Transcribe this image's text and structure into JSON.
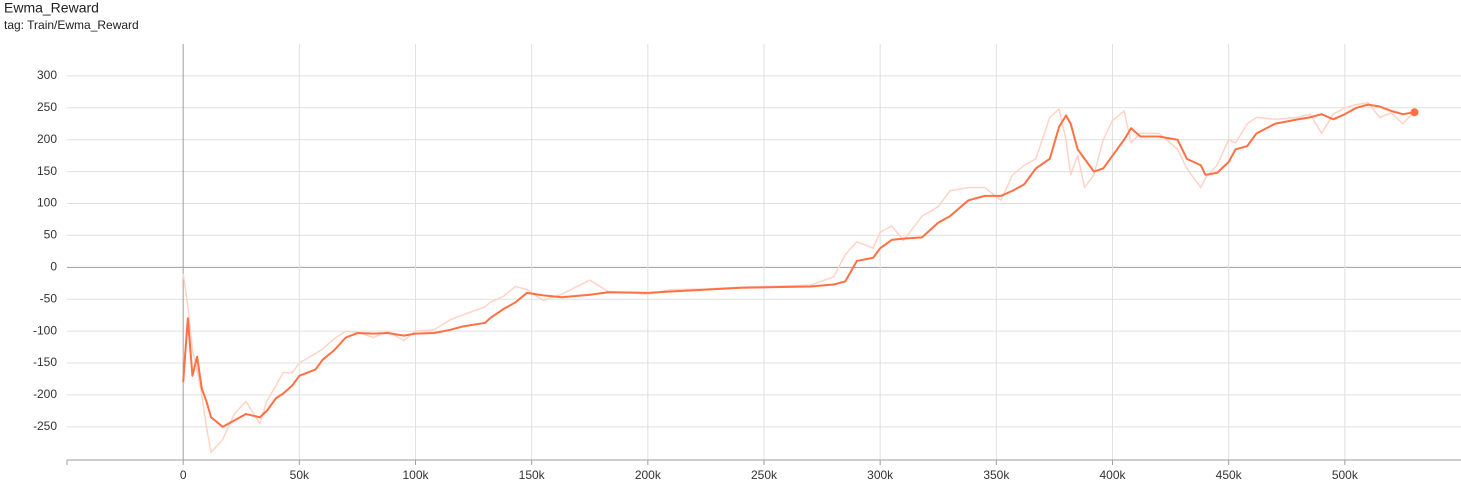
{
  "chart_data": {
    "type": "line",
    "title": "Ewma_Reward",
    "subtitle": "tag: Train/Ewma_Reward",
    "x": [
      0,
      2000,
      4000,
      6000,
      8000,
      10000,
      12000,
      17000,
      22000,
      27000,
      33000,
      36000,
      40000,
      43000,
      47000,
      50000,
      57000,
      60000,
      65000,
      70000,
      75000,
      82000,
      88000,
      95000,
      100000,
      108000,
      115000,
      120000,
      130000,
      132000,
      138000,
      143000,
      148000,
      155000,
      163000,
      175000,
      183000,
      200000,
      210000,
      225000,
      240000,
      270000,
      280000,
      285000,
      290000,
      297000,
      300000,
      305000,
      310000,
      318000,
      325000,
      330000,
      338000,
      345000,
      352000,
      357000,
      362000,
      367000,
      373000,
      377000,
      380000,
      382000,
      385000,
      388000,
      392000,
      396000,
      400000,
      405000,
      408000,
      412000,
      420000,
      428000,
      432000,
      438000,
      440000,
      445000,
      450000,
      453000,
      458000,
      462000,
      470000,
      480000,
      485000,
      490000,
      495000,
      500000,
      505000,
      510000,
      515000,
      520000,
      525000,
      530000
    ],
    "series": [
      {
        "color": "#ffd4c6",
        "values": [
          -10,
          -60,
          -130,
          -160,
          -200,
          -250,
          -290,
          -270,
          -230,
          -210,
          -245,
          -210,
          -185,
          -165,
          -165,
          -150,
          -135,
          -128,
          -112,
          -100,
          -102,
          -110,
          -100,
          -115,
          -100,
          -98,
          -82,
          -75,
          -62,
          -55,
          -45,
          -30,
          -35,
          -52,
          -42,
          -20,
          -38,
          -42,
          -35,
          -34,
          -31,
          -28,
          -15,
          20,
          40,
          30,
          55,
          65,
          42,
          80,
          95,
          120,
          125,
          125,
          105,
          145,
          160,
          170,
          235,
          248,
          200,
          145,
          175,
          125,
          145,
          200,
          230,
          245,
          195,
          210,
          210,
          185,
          155,
          125,
          140,
          160,
          200,
          195,
          225,
          235,
          232,
          235,
          240,
          210,
          240,
          250,
          255,
          258,
          235,
          242,
          225,
          245
        ]
      },
      {
        "color": "#ff7043",
        "values": [
          -180,
          -80,
          -170,
          -140,
          -190,
          -210,
          -235,
          -250,
          -240,
          -230,
          -235,
          -225,
          -205,
          -198,
          -185,
          -170,
          -160,
          -145,
          -130,
          -110,
          -103,
          -104,
          -103,
          -107,
          -104,
          -103,
          -98,
          -93,
          -87,
          -80,
          -65,
          -55,
          -40,
          -44,
          -47,
          -43,
          -39,
          -40,
          -38,
          -35,
          -32,
          -30,
          -27,
          -22,
          10,
          15,
          30,
          43,
          45,
          47,
          70,
          80,
          105,
          112,
          112,
          120,
          130,
          155,
          170,
          220,
          238,
          225,
          185,
          170,
          150,
          155,
          175,
          200,
          218,
          205,
          205,
          200,
          170,
          160,
          145,
          148,
          165,
          185,
          190,
          210,
          225,
          232,
          235,
          240,
          232,
          240,
          250,
          255,
          252,
          245,
          240,
          243
        ]
      }
    ],
    "xlim": [
      -50000,
      550000
    ],
    "ylim": [
      -302,
      350
    ],
    "xticks": [
      0,
      {
        "value": 50000,
        "label": "50k"
      },
      {
        "value": 100000,
        "label": "100k"
      },
      {
        "value": 150000,
        "label": "150k"
      },
      {
        "value": 200000,
        "label": "200k"
      },
      {
        "value": 250000,
        "label": "250k"
      },
      {
        "value": 300000,
        "label": "300k"
      },
      {
        "value": 350000,
        "label": "350k"
      },
      {
        "value": 400000,
        "label": "400k"
      },
      {
        "value": 450000,
        "label": "450k"
      },
      {
        "value": 500000,
        "label": "500k"
      }
    ],
    "yticks": [
      -250,
      -200,
      -150,
      -100,
      -50,
      0,
      50,
      100,
      150,
      200,
      250,
      300
    ],
    "grid": true
  }
}
